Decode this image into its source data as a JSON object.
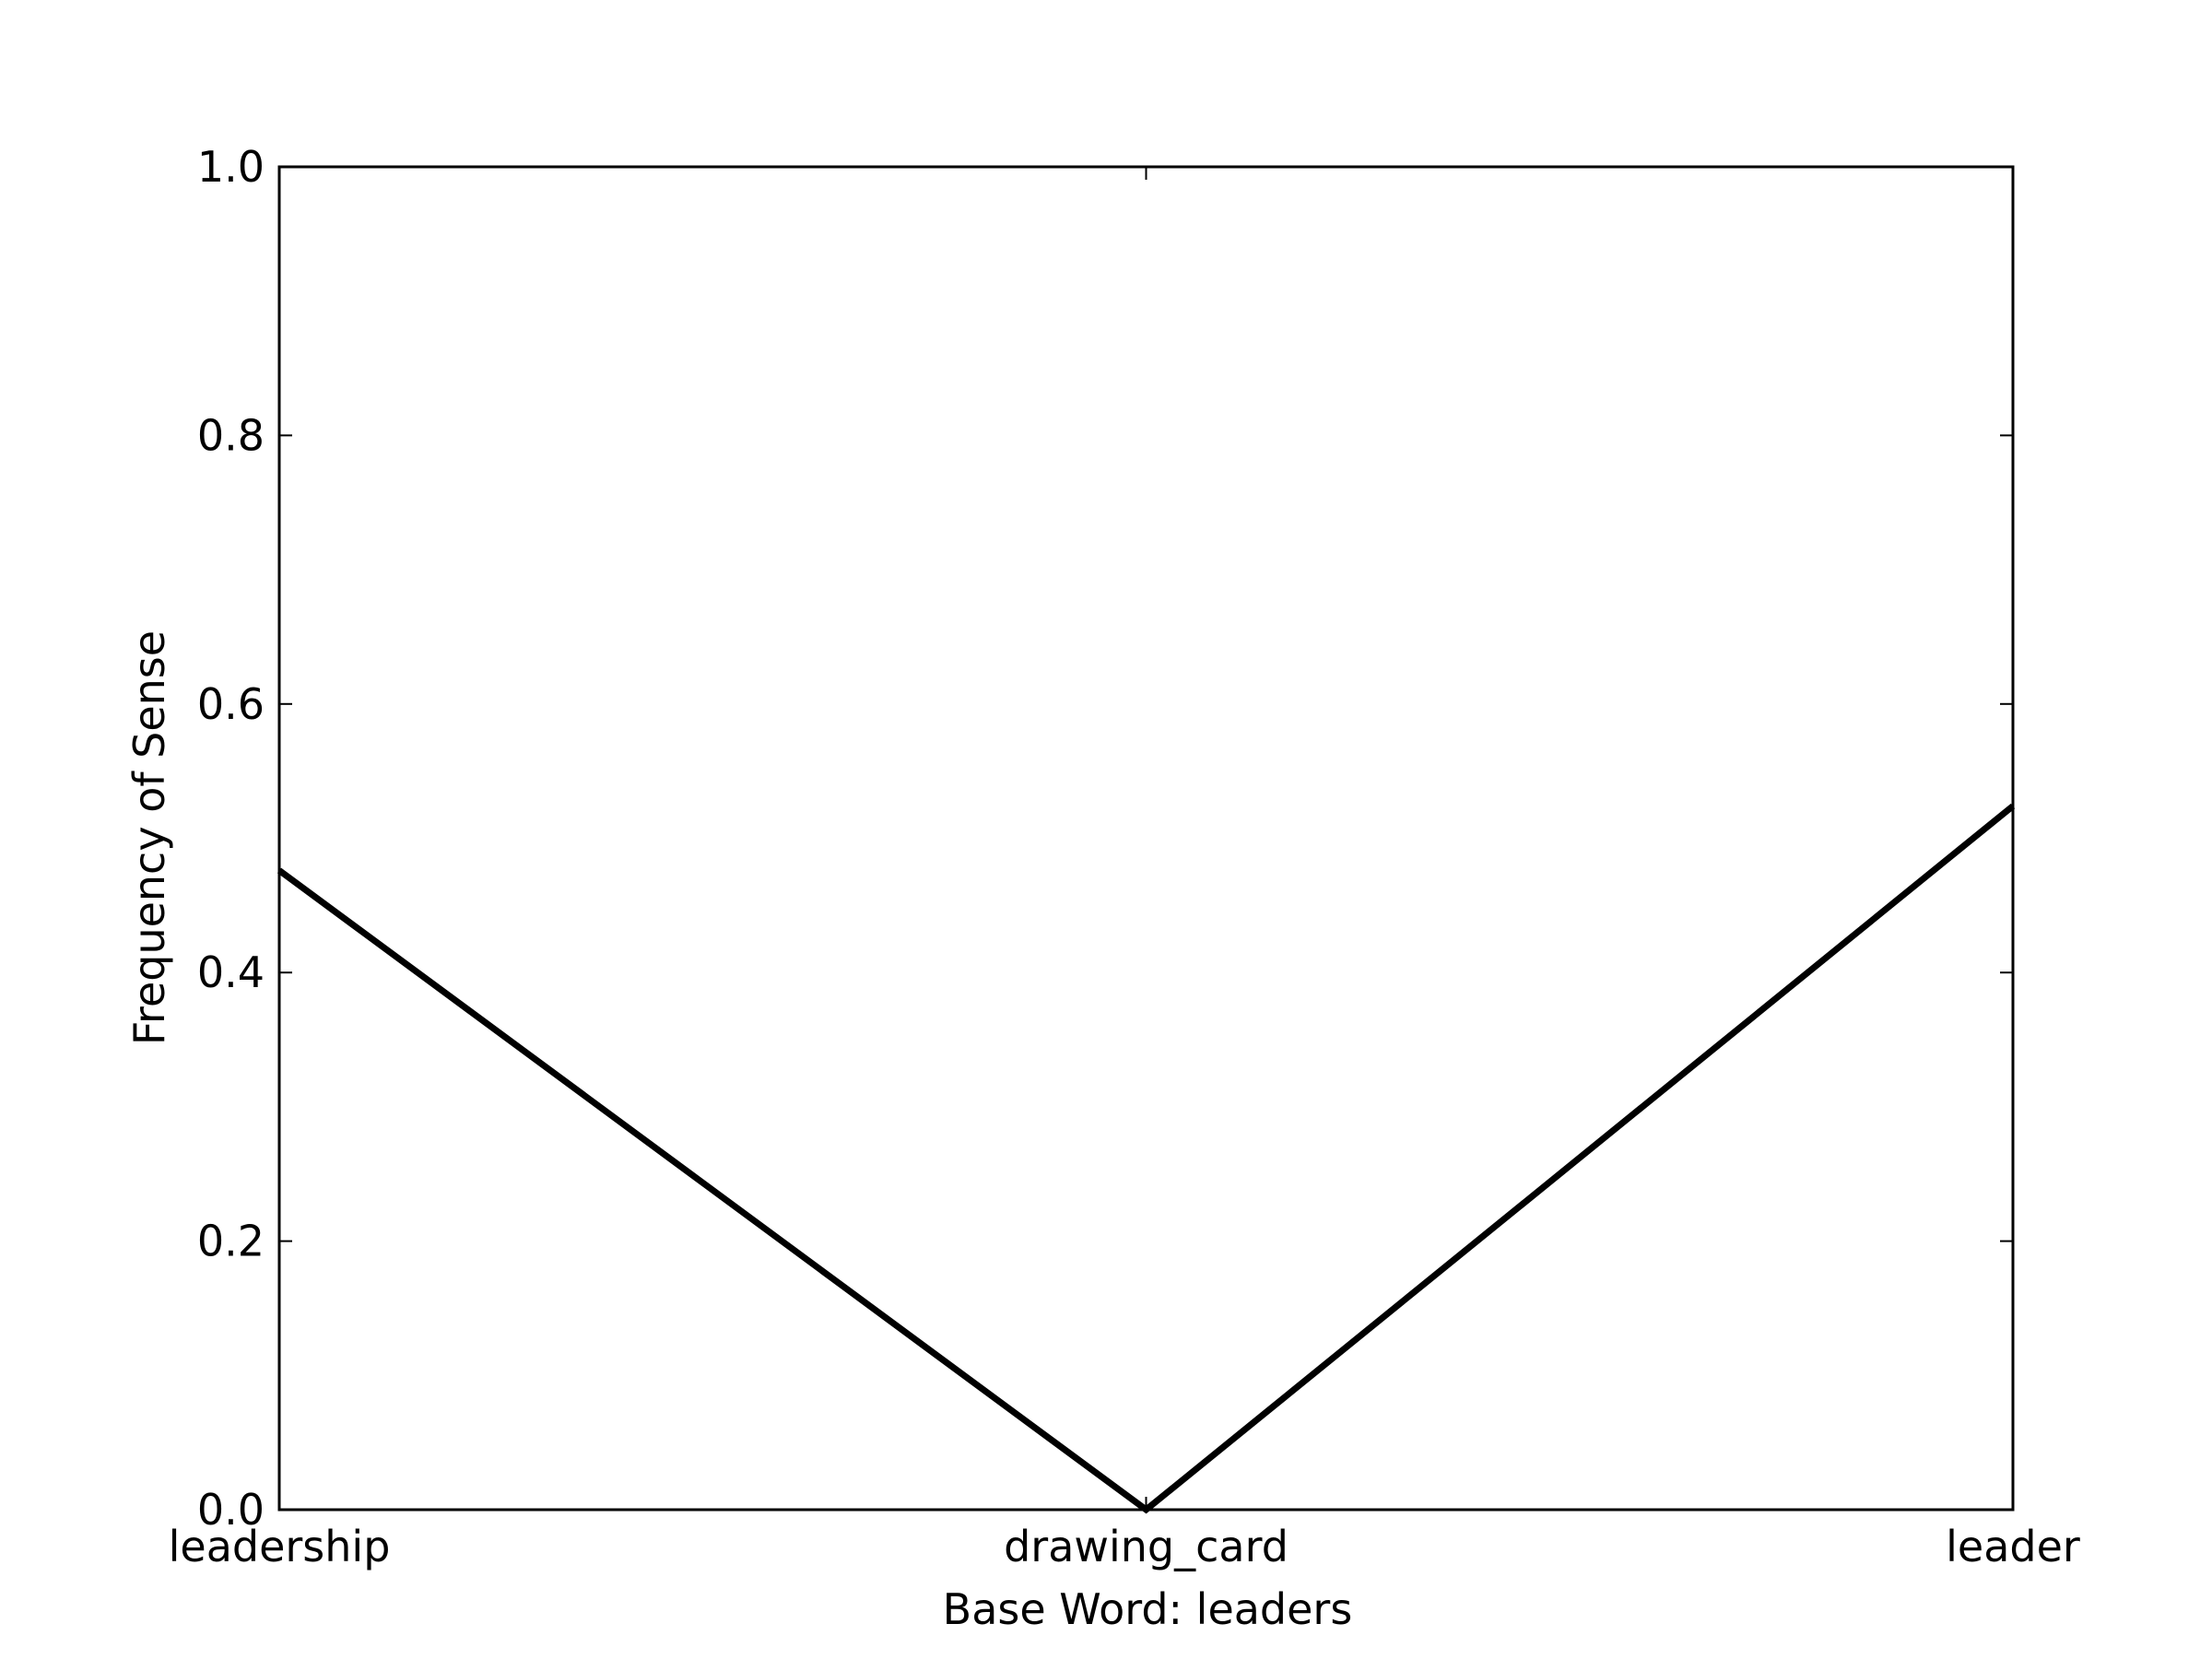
{
  "chart_data": {
    "type": "line",
    "title": "",
    "xlabel": "Base Word: leaders",
    "ylabel": "Frequency of Sense",
    "categories": [
      "leadership",
      "drawing_card",
      "leader"
    ],
    "series": [
      {
        "values": [
          0.476,
          0.0,
          0.524
        ]
      }
    ],
    "ylim": [
      0.0,
      1.0
    ],
    "yticks": [
      "0.0",
      "0.2",
      "0.4",
      "0.6",
      "0.8",
      "1.0"
    ],
    "grid": false,
    "line_color": "#000000"
  }
}
